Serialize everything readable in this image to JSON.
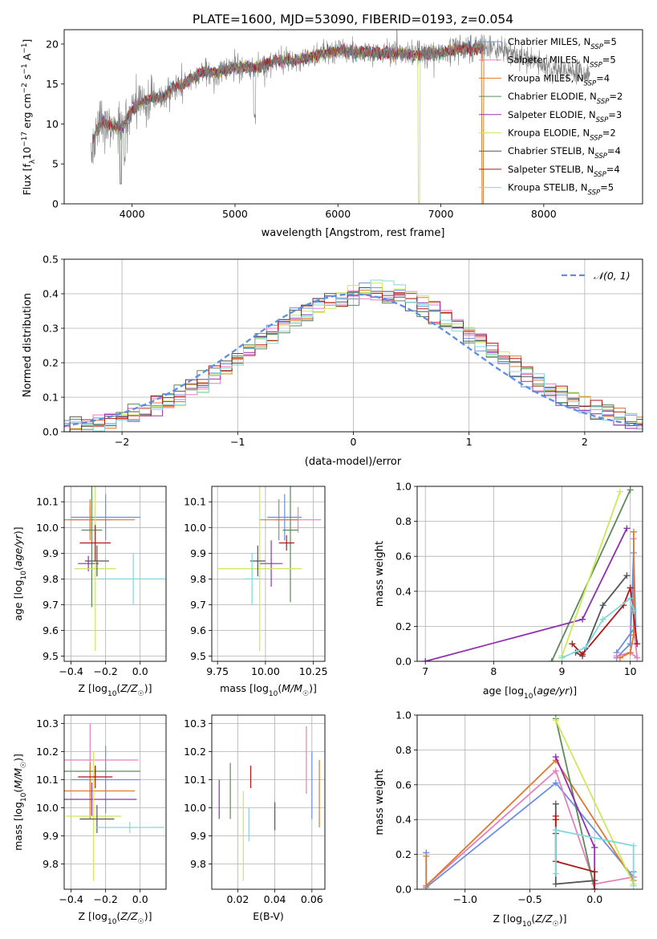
{
  "figure_title": "PLATE=1600, MJD=53090, FIBERID=0193, z=0.054",
  "colors": {
    "Chabrier MILES": "#6a8fdc",
    "Salpeter MILES": "#e67fbf",
    "Kroupa MILES": "#dd7a2e",
    "Chabrier ELODIE": "#5a8a5a",
    "Salpeter ELODIE": "#9030b0",
    "Kroupa ELODIE": "#cde85a",
    "Chabrier STELIB": "#555555",
    "Salpeter STELIB": "#b01818",
    "Kroupa STELIB": "#80d8dc",
    "data": "#808080",
    "normal": "#5b8ee6",
    "grid": "#b0b0b0"
  },
  "chart_data": [
    {
      "id": "spectrum",
      "type": "line",
      "title": "PLATE=1600, MJD=53090, FIBERID=0193, z=0.054",
      "xlabel": "wavelength [Angstrom, rest frame]",
      "ylabel": "Flux [f_λ 10^-17 erg cm^-2 s^-1 A^-1]",
      "xlim": [
        3340,
        8960
      ],
      "ylim": [
        0,
        21.8
      ],
      "xticks": [
        "4000",
        "5000",
        "6000",
        "7000",
        "8000"
      ],
      "yticks": [
        "0",
        "5",
        "10",
        "15",
        "20"
      ],
      "legend_position": "upper right",
      "legend": [
        {
          "label": "Chabrier MILES, N",
          "sub": "SSP",
          "suffix": "=5"
        },
        {
          "label": "Salpeter MILES, N",
          "sub": "SSP",
          "suffix": "=5"
        },
        {
          "label": "Kroupa MILES, N",
          "sub": "SSP",
          "suffix": "=4"
        },
        {
          "label": "Chabrier ELODIE, N",
          "sub": "SSP",
          "suffix": "=2"
        },
        {
          "label": "Salpeter ELODIE, N",
          "sub": "SSP",
          "suffix": "=3"
        },
        {
          "label": "Kroupa ELODIE, N",
          "sub": "SSP",
          "suffix": "=2"
        },
        {
          "label": "Chabrier STELIB, N",
          "sub": "SSP",
          "suffix": "=4"
        },
        {
          "label": "Salpeter STELIB, N",
          "sub": "SSP",
          "suffix": "=4"
        },
        {
          "label": "Kroupa STELIB, N",
          "sub": "SSP",
          "suffix": "=5"
        }
      ],
      "continuum": {
        "x": [
          3600,
          3700,
          3800,
          3900,
          4000,
          4100,
          4200,
          4300,
          4400,
          4500,
          4600,
          4700,
          4800,
          4900,
          5000,
          5200,
          5400,
          5600,
          5800,
          6000,
          6200,
          6400,
          6600,
          6800,
          7000,
          7200,
          7400,
          7600,
          7800,
          8000,
          8200,
          8400
        ],
        "y": [
          7.5,
          10.2,
          9.8,
          9.6,
          11.7,
          12.7,
          13.3,
          13.3,
          14.6,
          15.0,
          15.8,
          16.6,
          16.4,
          16.7,
          17.1,
          17.0,
          17.9,
          17.9,
          18.7,
          19.2,
          19.0,
          18.9,
          18.8,
          18.7,
          18.9,
          19.4,
          19.5,
          19.3,
          18.4,
          17.4,
          16.8,
          16.3
        ]
      },
      "model_xrange": [
        3620,
        7420
      ],
      "data_xrange": [
        3600,
        8450
      ]
    },
    {
      "id": "residuals",
      "type": "bar",
      "xlabel": "(data-model)/error",
      "ylabel": "Normed distribution",
      "xlim": [
        -2.5,
        2.5
      ],
      "ylim": [
        0,
        0.5
      ],
      "xticks": [
        "−2",
        "−1",
        "0",
        "1",
        "2"
      ],
      "yticks": [
        "0.0",
        "0.1",
        "0.2",
        "0.3",
        "0.4",
        "0.5"
      ],
      "legend_position": "upper right",
      "legend": [
        "𝒩(0, 1)"
      ],
      "bin_width": 0.1,
      "series_count": 9
    },
    {
      "id": "age-vs-Z",
      "type": "scatter",
      "xlabel": "Z [log10(Z/Z☉)]",
      "ylabel": "age [log10(age/yr)]",
      "xlim": [
        -0.44,
        0.15
      ],
      "ylim": [
        9.48,
        10.16
      ],
      "xticks": [
        "−0.4",
        "−0.2",
        "0.0"
      ],
      "yticks": [
        "9.5",
        "9.6",
        "9.7",
        "9.8",
        "9.9",
        "10.0",
        "10.1"
      ],
      "points": [
        {
          "series": "Chabrier MILES",
          "x": -0.2,
          "xerr": 0.2,
          "y": 10.04,
          "yerr": 0.09
        },
        {
          "series": "Salpeter MILES",
          "x": -0.29,
          "xerr": 0.12,
          "y": 10.03,
          "yerr": 0.05
        },
        {
          "series": "Kroupa MILES",
          "x": -0.29,
          "xerr": 0.26,
          "y": 10.03,
          "yerr": 0.08
        },
        {
          "series": "Chabrier ELODIE",
          "x": -0.28,
          "xerr": 0.06,
          "y": 9.99,
          "yerr": 0.3
        },
        {
          "series": "Salpeter ELODIE",
          "x": -0.3,
          "xerr": 0.06,
          "y": 9.86,
          "yerr": 0.03
        },
        {
          "series": "Kroupa ELODIE",
          "x": -0.26,
          "xerr": 0.12,
          "y": 9.84,
          "yerr": 0.32
        },
        {
          "series": "Chabrier STELIB",
          "x": -0.25,
          "xerr": 0.07,
          "y": 9.87,
          "yerr": 0.06
        },
        {
          "series": "Salpeter STELIB",
          "x": -0.26,
          "xerr": 0.09,
          "y": 9.94,
          "yerr": 0.07
        },
        {
          "series": "Kroupa STELIB",
          "x": -0.04,
          "xerr": 0.2,
          "y": 9.8,
          "yerr": 0.1
        }
      ]
    },
    {
      "id": "age-vs-mass",
      "type": "scatter",
      "xlabel": "mass [log10(M/M☉)]",
      "ylabel": "",
      "xlim": [
        9.72,
        10.31
      ],
      "ylim": [
        9.48,
        10.16
      ],
      "xticks": [
        "9.75",
        "10.00",
        "10.25"
      ],
      "yticks": [
        "9.5",
        "9.6",
        "9.7",
        "9.8",
        "9.9",
        "10.0",
        "10.1"
      ],
      "points": [
        {
          "series": "Chabrier MILES",
          "x": 10.1,
          "xerr": 0.09,
          "y": 10.04,
          "yerr": 0.09
        },
        {
          "series": "Salpeter MILES",
          "x": 10.17,
          "xerr": 0.12,
          "y": 10.03,
          "yerr": 0.05
        },
        {
          "series": "Kroupa MILES",
          "x": 10.07,
          "xerr": 0.1,
          "y": 10.03,
          "yerr": 0.08
        },
        {
          "series": "Chabrier ELODIE",
          "x": 10.13,
          "xerr": 0.04,
          "y": 9.99,
          "yerr": 0.28
        },
        {
          "series": "Salpeter ELODIE",
          "x": 10.03,
          "xerr": 0.06,
          "y": 9.86,
          "yerr": 0.09
        },
        {
          "series": "Kroupa ELODIE",
          "x": 9.97,
          "xerr": 0.22,
          "y": 9.84,
          "yerr": 0.32
        },
        {
          "series": "Chabrier STELIB",
          "x": 9.96,
          "xerr": 0.04,
          "y": 9.87,
          "yerr": 0.06
        },
        {
          "series": "Salpeter STELIB",
          "x": 10.11,
          "xerr": 0.04,
          "y": 9.94,
          "yerr": 0.03
        },
        {
          "series": "Kroupa STELIB",
          "x": 9.93,
          "xerr": 0.04,
          "y": 9.8,
          "yerr": 0.1
        }
      ]
    },
    {
      "id": "weight-vs-age",
      "type": "line",
      "xlabel": "age [log10(age/yr)]",
      "ylabel": "mass weight",
      "xlim": [
        6.88,
        10.18
      ],
      "ylim": [
        0,
        1
      ],
      "xticks": [
        "7",
        "8",
        "9",
        "10"
      ],
      "yticks": [
        "0.0",
        "0.2",
        "0.4",
        "0.6",
        "0.8",
        "1.0"
      ],
      "series": [
        {
          "name": "Chabrier MILES",
          "x": [
            9.8,
            10.0,
            10.05,
            10.08,
            9.8
          ],
          "y": [
            0.02,
            0.1,
            0.62,
            0.2,
            0.05
          ]
        },
        {
          "name": "Salpeter MILES",
          "x": [
            9.8,
            10.0,
            10.1,
            10.05,
            10.05
          ],
          "y": [
            0.03,
            0.05,
            0.02,
            0.2,
            0.7
          ]
        },
        {
          "name": "Kroupa MILES",
          "x": [
            9.85,
            10.0,
            10.05,
            10.05
          ],
          "y": [
            0.02,
            0.05,
            0.15,
            0.74
          ]
        },
        {
          "name": "Chabrier ELODIE",
          "x": [
            8.85,
            10.0
          ],
          "y": [
            0.0,
            0.98
          ]
        },
        {
          "name": "Salpeter ELODIE",
          "x": [
            7.0,
            9.3,
            9.95
          ],
          "y": [
            0.0,
            0.24,
            0.76
          ]
        },
        {
          "name": "Kroupa ELODIE",
          "x": [
            9.0,
            9.85
          ],
          "y": [
            0.03,
            0.97
          ]
        },
        {
          "name": "Chabrier STELIB",
          "x": [
            9.2,
            9.3,
            9.6,
            9.95
          ],
          "y": [
            0.05,
            0.03,
            0.32,
            0.49
          ]
        },
        {
          "name": "Salpeter STELIB",
          "x": [
            9.15,
            9.3,
            9.9,
            10.0,
            10.1
          ],
          "y": [
            0.1,
            0.04,
            0.32,
            0.42,
            0.1
          ]
        },
        {
          "name": "Kroupa STELIB",
          "x": [
            9.0,
            9.35,
            9.6,
            10.0,
            10.05
          ],
          "y": [
            0.02,
            0.08,
            0.24,
            0.36,
            0.29
          ]
        }
      ]
    },
    {
      "id": "mass-vs-Z",
      "type": "scatter",
      "xlabel": "Z [log10(Z/Z☉)]",
      "ylabel": "mass [log10(M/M☉)]",
      "xlim": [
        -0.44,
        0.15
      ],
      "ylim": [
        9.71,
        10.33
      ],
      "xticks": [
        "−0.4",
        "−0.2",
        "0.0"
      ],
      "yticks": [
        "9.8",
        "9.9",
        "10.0",
        "10.1",
        "10.2",
        "10.3"
      ],
      "points": [
        {
          "series": "Chabrier MILES",
          "x": -0.2,
          "xerr": 0.2,
          "y": 10.1,
          "yerr": 0.12
        },
        {
          "series": "Salpeter MILES",
          "x": -0.29,
          "xerr": 0.28,
          "y": 10.17,
          "yerr": 0.13
        },
        {
          "series": "Kroupa MILES",
          "x": -0.29,
          "xerr": 0.26,
          "y": 10.06,
          "yerr": 0.1
        },
        {
          "series": "Chabrier ELODIE",
          "x": -0.26,
          "xerr": 0.26,
          "y": 10.13,
          "yerr": 0.02
        },
        {
          "series": "Salpeter ELODIE",
          "x": -0.28,
          "xerr": 0.26,
          "y": 10.03,
          "yerr": 0.06
        },
        {
          "series": "Kroupa ELODIE",
          "x": -0.27,
          "xerr": 0.16,
          "y": 9.97,
          "yerr": 0.23
        },
        {
          "series": "Chabrier STELIB",
          "x": -0.25,
          "xerr": 0.1,
          "y": 9.96,
          "yerr": 0.05
        },
        {
          "series": "Salpeter STELIB",
          "x": -0.26,
          "xerr": 0.1,
          "y": 10.11,
          "yerr": 0.04
        },
        {
          "series": "Kroupa STELIB",
          "x": -0.06,
          "xerr": 0.2,
          "y": 9.93,
          "yerr": 0.02
        }
      ]
    },
    {
      "id": "mass-vs-EBV",
      "type": "scatter",
      "xlabel": "E(B-V)",
      "ylabel": "",
      "xlim": [
        0.006,
        0.067
      ],
      "ylim": [
        9.71,
        10.33
      ],
      "xticks": [
        "0.02",
        "0.04",
        "0.06"
      ],
      "yticks": [
        "9.8",
        "9.9",
        "10.0",
        "10.1",
        "10.2",
        "10.3"
      ],
      "points": [
        {
          "series": "Chabrier MILES",
          "x": 0.06,
          "y": 10.08,
          "yerr": 0.12
        },
        {
          "series": "Salpeter MILES",
          "x": 0.057,
          "y": 10.17,
          "yerr": 0.12
        },
        {
          "series": "Kroupa MILES",
          "x": 0.064,
          "y": 10.05,
          "yerr": 0.12
        },
        {
          "series": "Chabrier ELODIE",
          "x": 0.016,
          "y": 10.06,
          "yerr": 0.1
        },
        {
          "series": "Salpeter ELODIE",
          "x": 0.01,
          "y": 10.03,
          "yerr": 0.07
        },
        {
          "series": "Kroupa ELODIE",
          "x": 0.023,
          "y": 9.9,
          "yerr": 0.16
        },
        {
          "series": "Chabrier STELIB",
          "x": 0.04,
          "y": 9.97,
          "yerr": 0.05
        },
        {
          "series": "Salpeter STELIB",
          "x": 0.027,
          "y": 10.11,
          "yerr": 0.04
        },
        {
          "series": "Kroupa STELIB",
          "x": 0.026,
          "y": 9.94,
          "yerr": 0.06
        }
      ]
    },
    {
      "id": "weight-vs-Z",
      "type": "line",
      "xlabel": "Z [log10(Z/Z☉)]",
      "ylabel": "mass weight",
      "xlim": [
        -1.37,
        0.37
      ],
      "ylim": [
        0,
        1
      ],
      "xticks": [
        "−1.0",
        "−0.5",
        "0.0"
      ],
      "yticks": [
        "0.0",
        "0.2",
        "0.4",
        "0.6",
        "0.8",
        "1.0"
      ],
      "series": [
        {
          "name": "Chabrier MILES",
          "x": [
            -1.3,
            -1.3,
            -0.3,
            0.3,
            0.3
          ],
          "y": [
            0.21,
            0.01,
            0.61,
            0.07,
            0.1
          ]
        },
        {
          "name": "Salpeter MILES",
          "x": [
            -1.3,
            -0.3,
            0.0,
            0.3
          ],
          "y": [
            0.02,
            0.68,
            0.03,
            0.07
          ]
        },
        {
          "name": "Kroupa MILES",
          "x": [
            -1.3,
            -1.3,
            -0.3,
            0.3
          ],
          "y": [
            0.19,
            0.02,
            0.74,
            0.05
          ]
        },
        {
          "name": "Chabrier ELODIE",
          "x": [
            -0.3,
            0.0
          ],
          "y": [
            0.98,
            0.0
          ]
        },
        {
          "name": "Salpeter ELODIE",
          "x": [
            -0.3,
            0.0,
            0.0
          ],
          "y": [
            0.76,
            0.24,
            0.0
          ]
        },
        {
          "name": "Kroupa ELODIE",
          "x": [
            -0.3,
            0.3
          ],
          "y": [
            0.97,
            0.03
          ]
        },
        {
          "name": "Chabrier STELIB",
          "x": [
            -0.3,
            -0.3,
            -0.3,
            0.0
          ],
          "y": [
            0.49,
            0.32,
            0.03,
            0.05
          ]
        },
        {
          "name": "Salpeter STELIB",
          "x": [
            -0.3,
            -0.3,
            -0.3,
            0.0,
            0.0
          ],
          "y": [
            0.42,
            0.4,
            0.16,
            0.1,
            0.0
          ]
        },
        {
          "name": "Kroupa STELIB",
          "x": [
            -0.3,
            -0.3,
            0.3,
            0.3
          ],
          "y": [
            0.09,
            0.34,
            0.25,
            0.02
          ]
        }
      ]
    }
  ]
}
